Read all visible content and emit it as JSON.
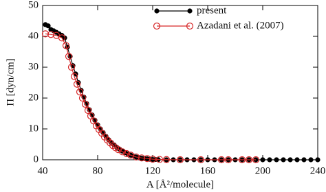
{
  "chart_data": {
    "type": "line",
    "xlabel": "A [Å²/molecule]",
    "ylabel": "Π [dyn/cm]",
    "xlim": [
      40,
      240
    ],
    "xticks": [
      40,
      80,
      120,
      160,
      200,
      240
    ],
    "ylim": [
      0,
      50
    ],
    "yticks": [
      0,
      10,
      20,
      30,
      40,
      50
    ],
    "legend": "upper right",
    "series": [
      {
        "name": "present",
        "color": "#000000",
        "marker": "filled",
        "x": [
          42,
          44,
          46,
          48,
          50,
          52,
          54,
          56,
          58,
          60,
          62,
          64,
          66,
          68,
          70,
          72,
          74,
          76,
          78,
          80,
          82,
          84,
          86,
          88,
          90,
          92,
          94,
          96,
          98,
          100,
          102,
          104,
          106,
          108,
          110,
          112,
          114,
          116,
          118,
          120,
          122,
          124,
          130,
          135,
          140,
          145,
          150,
          155,
          160,
          165,
          170,
          175,
          180,
          185,
          190,
          195,
          200,
          205,
          210,
          215,
          220,
          225,
          230,
          235,
          240
        ],
        "values": [
          43.8,
          43.4,
          42.2,
          41.8,
          41.3,
          40.8,
          40.3,
          39.5,
          36.5,
          33.5,
          30.5,
          27.8,
          25,
          22.5,
          20.3,
          18.2,
          16.2,
          14.5,
          12.8,
          11.3,
          10,
          8.8,
          7.6,
          6.5,
          5.6,
          4.8,
          4,
          3.4,
          2.8,
          2.3,
          1.9,
          1.5,
          1.2,
          0.9,
          0.7,
          0.5,
          0.4,
          0.3,
          0.2,
          0.1,
          0.1,
          0.05,
          0,
          0,
          0,
          0,
          0,
          0,
          0,
          0,
          0,
          0,
          0,
          0,
          0,
          0,
          0,
          0,
          0,
          0,
          0,
          0,
          0,
          0,
          0
        ]
      },
      {
        "name": "Azadani et al. (2007)",
        "color": "#d62728",
        "marker": "open",
        "x": [
          42,
          46,
          50,
          54,
          57,
          59,
          61,
          63,
          65,
          67,
          69,
          71,
          73,
          75,
          77,
          79,
          81,
          83,
          85,
          87,
          89,
          91,
          93,
          95,
          98,
          101,
          104,
          108,
          112,
          116,
          120,
          125,
          130,
          140,
          155,
          170,
          175,
          185,
          190,
          195
        ],
        "values": [
          40.8,
          40.6,
          40.3,
          39.5,
          37,
          33.5,
          30,
          27,
          24.5,
          22,
          20,
          18,
          16,
          14.2,
          12.6,
          11,
          9.8,
          8.6,
          7.4,
          6.4,
          5.5,
          4.6,
          3.9,
          3.3,
          2.6,
          2,
          1.5,
          0.9,
          0.6,
          0.4,
          0.2,
          0.1,
          0.05,
          0,
          0,
          0,
          0,
          0,
          0,
          0
        ]
      }
    ]
  }
}
